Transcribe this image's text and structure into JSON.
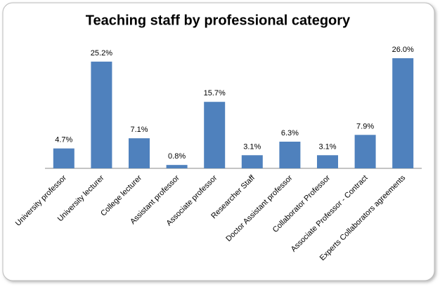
{
  "chart_data": {
    "type": "bar",
    "title": "Teaching staff by professional category",
    "categories": [
      "University professor",
      "University lecturer",
      "College lecturer",
      "Assistant professor",
      "Associate professor",
      "Researcher Staff",
      "Doctor Assistant professor",
      "Collaborator Professor",
      "Associate Professor - Contract",
      "Experts Collaborators agreements"
    ],
    "values": [
      4.7,
      25.2,
      7.1,
      0.8,
      15.7,
      3.1,
      6.3,
      3.1,
      7.9,
      26.0
    ],
    "value_labels": [
      "4.7%",
      "25.2%",
      "7.1%",
      "0.8%",
      "15.7%",
      "3.1%",
      "6.3%",
      "3.1%",
      "7.9%",
      "26.0%"
    ],
    "color": "#4f81bd"
  }
}
